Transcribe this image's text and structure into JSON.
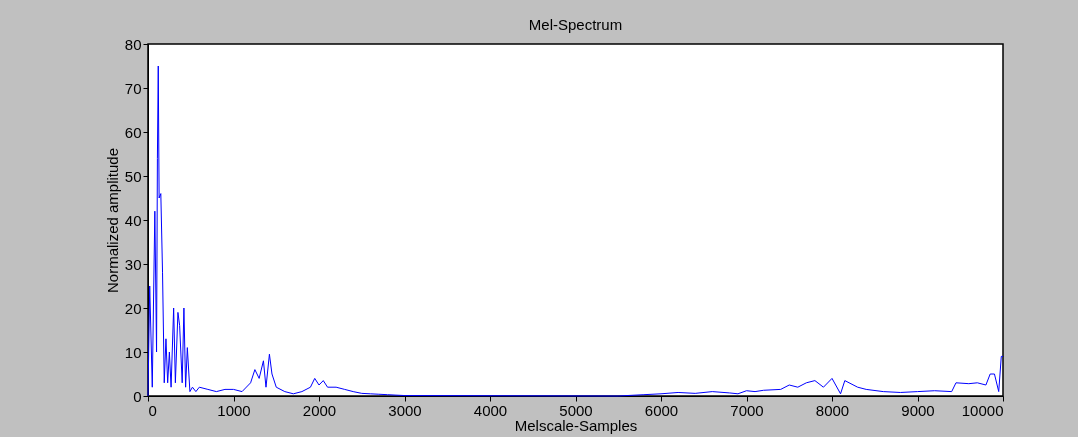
{
  "chart_data": {
    "type": "line",
    "title": "Mel-Spectrum",
    "xlabel": "Melscale-Samples",
    "ylabel": "Normalized amplitude",
    "x": [
      0,
      20,
      50,
      80,
      100,
      110,
      120,
      130,
      150,
      170,
      190,
      210,
      230,
      250,
      270,
      300,
      320,
      350,
      370,
      400,
      420,
      440,
      460,
      490,
      520,
      560,
      600,
      700,
      800,
      900,
      1000,
      1100,
      1200,
      1250,
      1300,
      1350,
      1380,
      1420,
      1450,
      1500,
      1600,
      1700,
      1800,
      1900,
      1950,
      2000,
      2050,
      2100,
      2200,
      2300,
      2400,
      2500,
      2600,
      2700,
      2800,
      2900,
      3000,
      5500,
      5800,
      6000,
      6200,
      6400,
      6600,
      6800,
      6900,
      7000,
      7100,
      7200,
      7400,
      7500,
      7600,
      7700,
      7800,
      7900,
      8000,
      8100,
      8150,
      8300,
      8400,
      8600,
      8800,
      9000,
      9200,
      9400,
      9450,
      9600,
      9700,
      9800,
      9850,
      9900,
      9950,
      9980,
      10000
    ],
    "series": [
      {
        "color": "#0000ff",
        "values": [
          0,
          25,
          2,
          42,
          10,
          54,
          75,
          45,
          46,
          28,
          3,
          13,
          3,
          10,
          2,
          20,
          3,
          19,
          16,
          3,
          20,
          2,
          11,
          1,
          2,
          1,
          2,
          1.5,
          1,
          1.5,
          1.5,
          1,
          3,
          6,
          4,
          8,
          2,
          9.5,
          5,
          2,
          1,
          0.5,
          1,
          2,
          4,
          2.5,
          3.5,
          2,
          2,
          1.5,
          1,
          0.6,
          0.5,
          0.4,
          0.3,
          0.2,
          0.1,
          0,
          0.3,
          0.5,
          0.8,
          0.6,
          1,
          0.7,
          0.5,
          1.2,
          1,
          1.3,
          1.5,
          2.5,
          2,
          3,
          3.5,
          2,
          4,
          0.5,
          3.5,
          2,
          1.5,
          1,
          0.8,
          1,
          1.2,
          1,
          3,
          2.8,
          3,
          2.5,
          5,
          5,
          1,
          9,
          9
        ]
      }
    ],
    "xlim": [
      0,
      10000
    ],
    "xticks": [
      0,
      1000,
      2000,
      3000,
      4000,
      5000,
      6000,
      7000,
      8000,
      9000,
      10000
    ],
    "ylim": [
      0,
      80
    ],
    "yticks": [
      0,
      10,
      20,
      30,
      40,
      50,
      60,
      70,
      80
    ],
    "grid": false,
    "legend": false
  }
}
